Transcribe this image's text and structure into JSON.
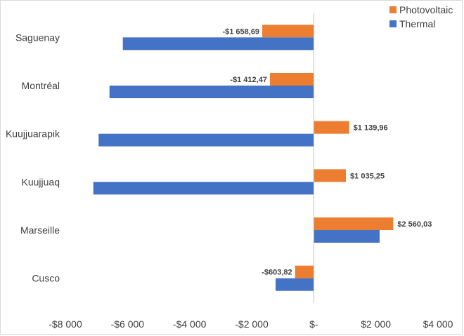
{
  "chart_data": {
    "type": "bar",
    "orientation": "horizontal",
    "categories": [
      "Saguenay",
      "Montréal",
      "Kuujjuarapik",
      "Kuujjuaq",
      "Marseille",
      "Cusco"
    ],
    "series": [
      {
        "name": "Photovoltaic",
        "color": "#ED7D31",
        "values": [
          -1658.69,
          -1412.47,
          1139.96,
          1035.25,
          2560.03,
          -603.82
        ],
        "data_labels": [
          "-$1 658,69",
          "-$1 412,47",
          "$1 139,96",
          "$1 035,25",
          "$2 560,03",
          "-$603,82"
        ]
      },
      {
        "name": "Thermal",
        "color": "#4472C4",
        "values": [
          -6150,
          -6580,
          -6930,
          -7100,
          2120,
          -1230
        ]
      }
    ],
    "xlim": [
      -8000,
      4000
    ],
    "x_ticks": [
      -8000,
      -6000,
      -4000,
      -2000,
      0,
      2000,
      4000
    ],
    "x_tick_labels": [
      "-$8 000",
      "-$6 000",
      "-$4 000",
      "-$2 000",
      "$-",
      "$2 000",
      "$4 000"
    ],
    "grid": false,
    "legend_position": "top-right"
  }
}
